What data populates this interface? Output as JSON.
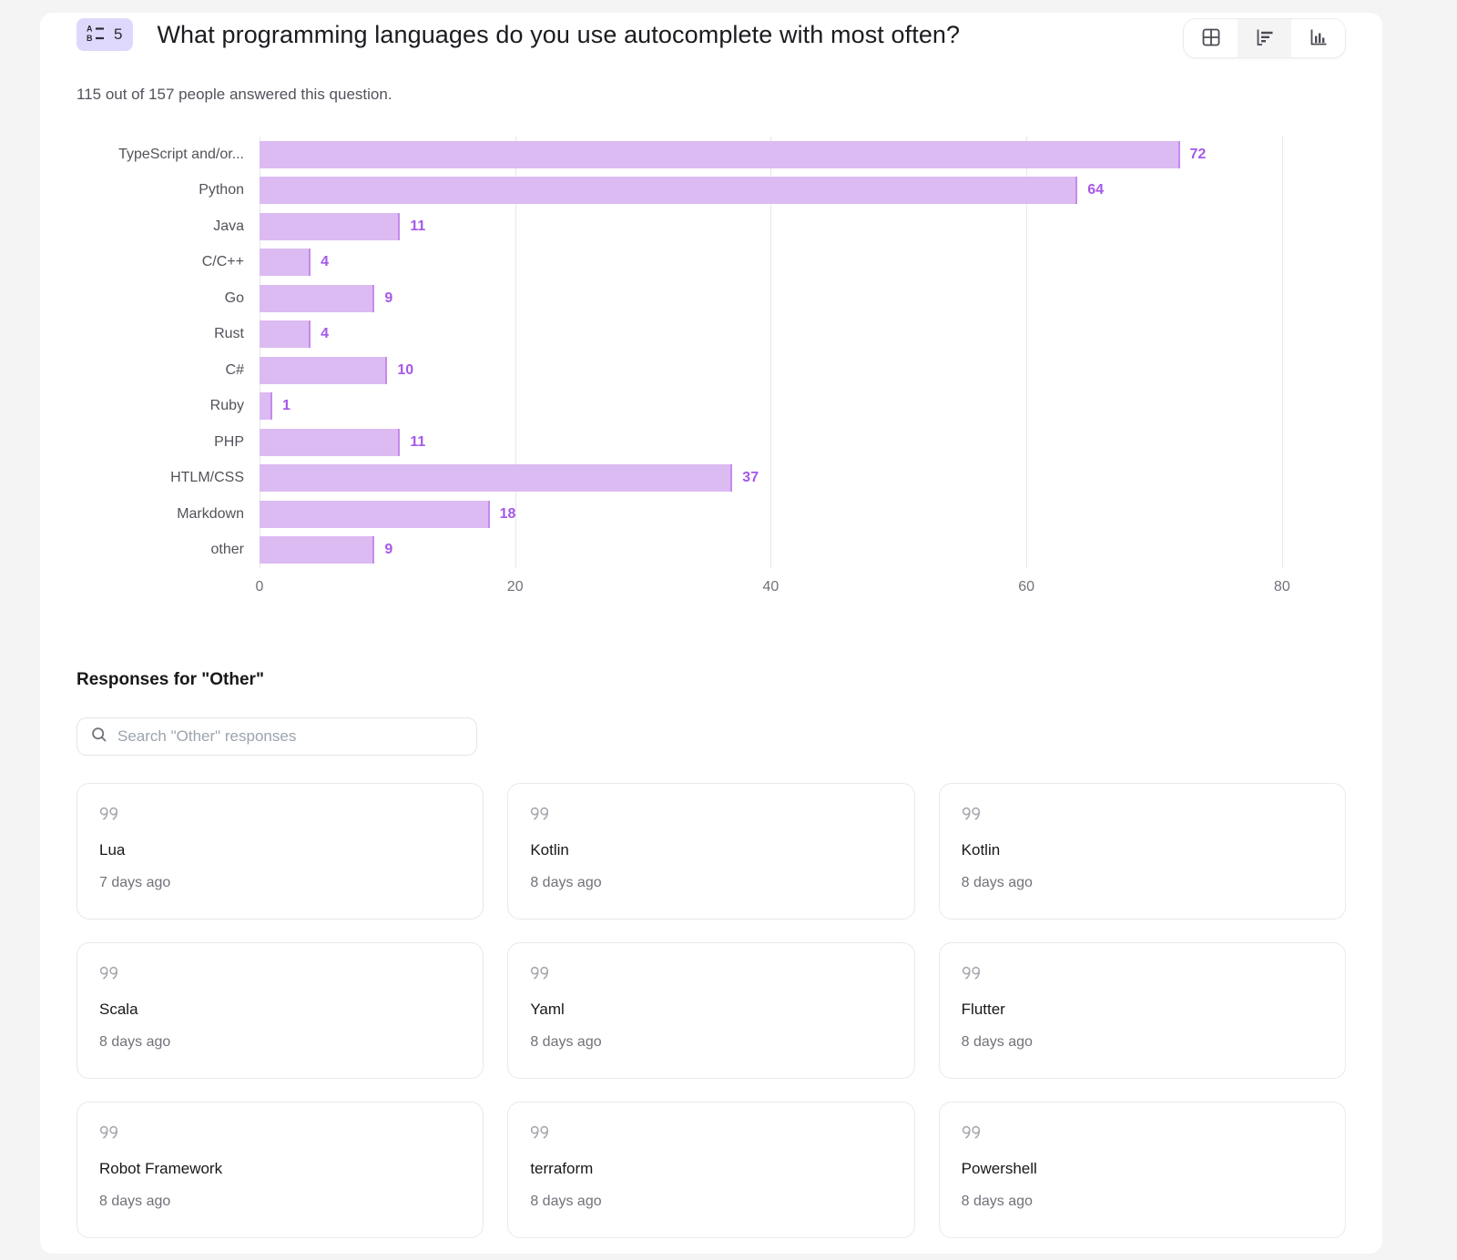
{
  "header": {
    "question_number": "5",
    "title": "What programming languages do you use autocomplete with most often?",
    "subtitle": "115 out of 157 people answered this question.",
    "view_toggle": [
      {
        "id": "table-view",
        "icon": "table-icon",
        "selected": false
      },
      {
        "id": "horizontal-bar-view",
        "icon": "horizontal-bar-chart-icon",
        "selected": true
      },
      {
        "id": "vertical-bar-view",
        "icon": "vertical-bar-chart-icon",
        "selected": false
      }
    ]
  },
  "chart_data": {
    "type": "bar",
    "orientation": "horizontal",
    "categories": [
      "TypeScript and/or...",
      "Python",
      "Java",
      "C/C++",
      "Go",
      "Rust",
      "C#",
      "Ruby",
      "PHP",
      "HTLM/CSS",
      "Markdown",
      "other"
    ],
    "values": [
      72,
      64,
      11,
      4,
      9,
      4,
      10,
      1,
      11,
      37,
      18,
      9
    ],
    "x_ticks": [
      0,
      20,
      40,
      60,
      80
    ],
    "xlim": [
      0,
      85
    ],
    "grid": true,
    "legend": false,
    "title": "",
    "xlabel": "",
    "ylabel": "",
    "bar_color": "#dcbaf2",
    "bar_edge_color": "#c78bea",
    "value_label_color": "#a558e8"
  },
  "theme": {
    "badge_bg": "#ded9fc",
    "page_bg": "#f4f4f5",
    "panel_bg": "#ffffff"
  },
  "responses": {
    "heading": "Responses for \"Other\"",
    "search_placeholder": "Search \"Other\" responses",
    "search_value": "",
    "cards": [
      {
        "text": "Lua",
        "time": "7 days ago"
      },
      {
        "text": "Kotlin",
        "time": "8 days ago"
      },
      {
        "text": "Kotlin",
        "time": "8 days ago"
      },
      {
        "text": "Scala",
        "time": "8 days ago"
      },
      {
        "text": "Yaml",
        "time": "8 days ago"
      },
      {
        "text": "Flutter",
        "time": "8 days ago"
      },
      {
        "text": "Robot Framework",
        "time": "8 days ago"
      },
      {
        "text": "terraform",
        "time": "8 days ago"
      },
      {
        "text": "Powershell",
        "time": "8 days ago"
      }
    ]
  }
}
